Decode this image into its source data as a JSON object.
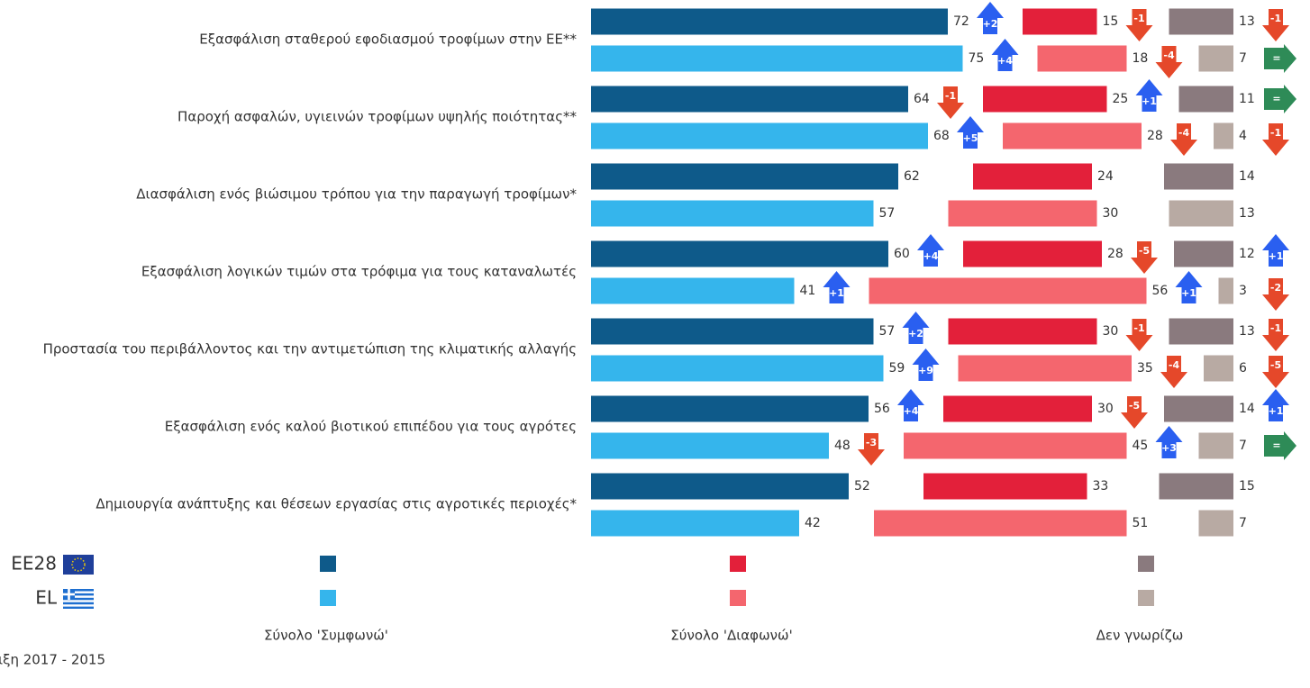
{
  "chart_data": {
    "type": "bar",
    "categories": [
      "Εξασφάλιση σταθερού εφοδιασμού τροφίμων στην ΕΕ**",
      "Παροχή ασφαλών, υγιεινών τροφίμων υψηλής ποιότητας**",
      "Διασφάλιση ενός βιώσιμου τρόπου για την παραγωγή τροφίμων*",
      "Εξασφάλιση λογικών τιμών στα τρόφιμα για τους καταναλωτές",
      "Προστασία του περιβάλλοντος και την αντιμετώπιση της κλιματικής αλλαγής",
      "Εξασφάλιση ενός καλού βιοτικού επιπέδου για τους αγρότες",
      "Δημιουργία ανάπτυξης και θέσεων εργασίας στις αγροτικές περιοχές*"
    ],
    "legend": [
      "EE28",
      "EL"
    ],
    "groups": [
      {
        "name": "Σύνολο 'Συμφωνώ'",
        "series": [
          {
            "color": "#0e5a8a",
            "values": [
              72,
              64,
              62,
              60,
              57,
              56,
              52
            ],
            "changes": [
              2,
              -1,
              null,
              4,
              2,
              4,
              null
            ],
            "change_labels": [
              "+2",
              "-1",
              null,
              "+4",
              "+2",
              "+4",
              null
            ]
          },
          {
            "color": "#35b5ec",
            "values": [
              75,
              68,
              57,
              41,
              59,
              48,
              42
            ],
            "changes": [
              4,
              5,
              null,
              1,
              9,
              -3,
              null
            ],
            "change_labels": [
              "+4",
              "+5",
              null,
              "+1",
              "+9",
              "-3",
              null
            ]
          }
        ]
      },
      {
        "name": "Σύνολο 'Διαφωνώ'",
        "series": [
          {
            "color": "#e3203a",
            "values": [
              15,
              25,
              24,
              28,
              30,
              30,
              33
            ],
            "changes": [
              -1,
              1,
              null,
              -5,
              -1,
              -5,
              null
            ],
            "change_labels": [
              "-1",
              "+1",
              null,
              "-5",
              "-1",
              "-5",
              null
            ]
          },
          {
            "color": "#f4666e",
            "values": [
              18,
              28,
              30,
              56,
              35,
              45,
              51
            ],
            "changes": [
              -4,
              -4,
              null,
              1,
              -4,
              3,
              null
            ],
            "change_labels": [
              "-4",
              "-4",
              null,
              "+1",
              "-4",
              "+3",
              null
            ]
          }
        ]
      },
      {
        "name": "Δεν γνωρίζω",
        "series": [
          {
            "color": "#8a7a7e",
            "values": [
              13,
              11,
              14,
              12,
              13,
              14,
              15
            ],
            "changes": [
              -1,
              0,
              null,
              1,
              -1,
              1,
              null
            ],
            "change_labels": [
              "-1",
              "=",
              null,
              "+1",
              "-1",
              "+1",
              null
            ]
          },
          {
            "color": "#b8aaa3",
            "values": [
              7,
              4,
              13,
              3,
              6,
              7,
              7
            ],
            "changes": [
              0,
              -1,
              null,
              -2,
              -5,
              0,
              null
            ],
            "change_labels": [
              "=",
              "-1",
              null,
              "-2",
              "-5",
              "=",
              null
            ]
          }
        ]
      }
    ],
    "footnote": "ιξη 2017 - 2015"
  }
}
